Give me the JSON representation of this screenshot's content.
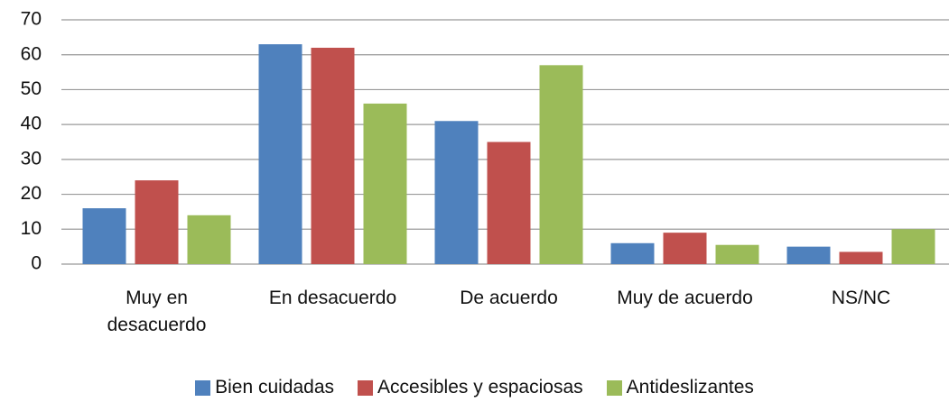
{
  "chart_data": {
    "type": "bar",
    "categories": [
      "Muy en desacuerdo",
      "En desacuerdo",
      "De acuerdo",
      "Muy de acuerdo",
      "NS/NC"
    ],
    "series": [
      {
        "name": "Bien cuidadas",
        "color": "#4f81bd",
        "values": [
          16,
          63,
          41,
          6,
          5
        ]
      },
      {
        "name": "Accesibles y espaciosas",
        "color": "#c0504d",
        "values": [
          24,
          62,
          35,
          9,
          3.5
        ]
      },
      {
        "name": "Antideslizantes",
        "color": "#9bbb59",
        "values": [
          14,
          46,
          57,
          5.5,
          10
        ]
      }
    ],
    "ylim": [
      0,
      70
    ],
    "yticks": [
      0,
      10,
      20,
      30,
      40,
      50,
      60,
      70
    ],
    "grid": true,
    "legend": "bottom"
  }
}
